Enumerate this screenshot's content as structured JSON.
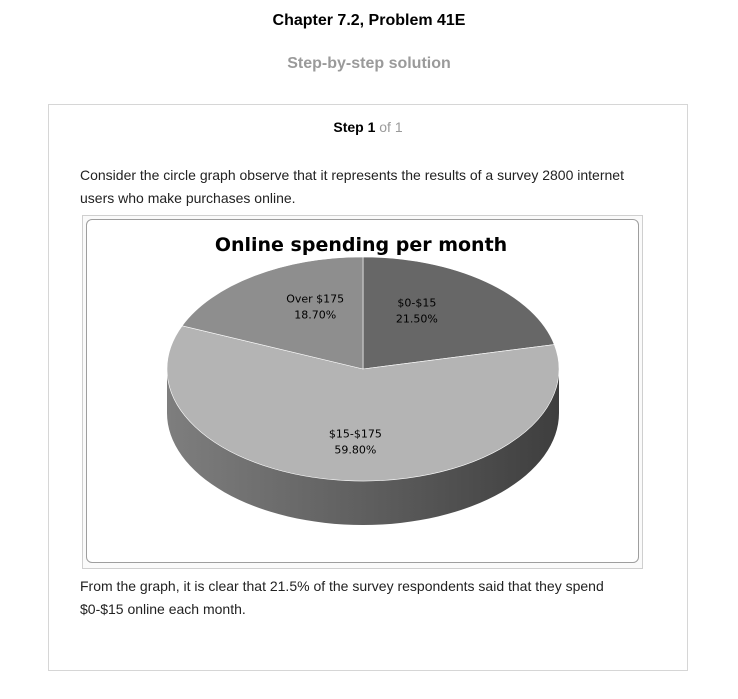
{
  "header": {
    "chapter_title": "Chapter 7.2, Problem 41E",
    "solution_title": "Step-by-step solution"
  },
  "step": {
    "label": "Step 1",
    "of_text": "of 1"
  },
  "content": {
    "intro": "Consider the circle graph observe that it represents the results of a survey 2800 internet users who make purchases online.",
    "conclusion": "From the graph, it is clear that 21.5% of the survey respondents said that they spend $0-$15 online each month."
  },
  "chart_data": {
    "type": "pie",
    "title": "Online spending per month",
    "categories": [
      "$0-$15",
      "$15-$175",
      "Over $175"
    ],
    "values": [
      21.5,
      59.8,
      18.7
    ],
    "data_labels": [
      "21.50%",
      "59.80%",
      "18.70%"
    ],
    "colors": [
      "#676767",
      "#b4b4b4",
      "#8e8e8e"
    ],
    "legend": "none",
    "style": "3d"
  }
}
